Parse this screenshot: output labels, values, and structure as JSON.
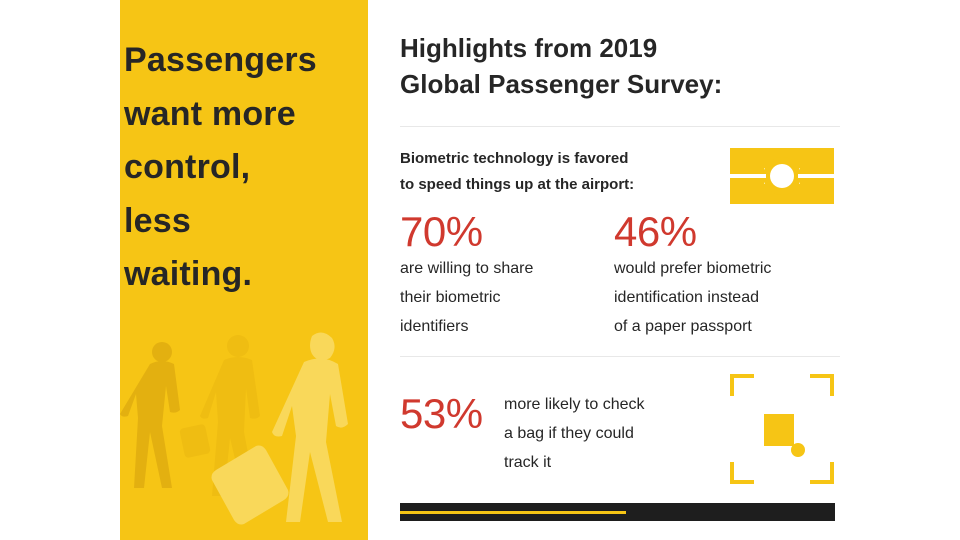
{
  "left_panel": {
    "headline_lines": [
      "Passengers",
      "want more",
      "control,",
      "less",
      "waiting."
    ],
    "background_color": "#f6c515",
    "illustration": "walking-passengers-silhouettes"
  },
  "right_panel": {
    "title_lines": [
      "Highlights from 2019",
      "Global Passenger Survey:"
    ],
    "intro_lines": [
      "Biometric technology is favored",
      "to speed things up at the airport:"
    ],
    "icons": {
      "biometric": "biometric-path-icon",
      "tracking": "bag-tracking-icon"
    },
    "stats": [
      {
        "value": "70%",
        "desc_lines": [
          "are willing to share",
          "their biometric",
          "identifiers"
        ]
      },
      {
        "value": "46%",
        "desc_lines": [
          "would prefer biometric",
          "identification instead",
          "of a paper passport"
        ]
      },
      {
        "value": "53%",
        "desc_lines": [
          "more likely to check",
          "a bag if they could",
          "track it"
        ]
      }
    ],
    "accent_color": "#f6c515",
    "stat_color": "#d0392e"
  },
  "footer_bar": {
    "progress": 0.52,
    "bar_color": "#1e1e1e"
  }
}
